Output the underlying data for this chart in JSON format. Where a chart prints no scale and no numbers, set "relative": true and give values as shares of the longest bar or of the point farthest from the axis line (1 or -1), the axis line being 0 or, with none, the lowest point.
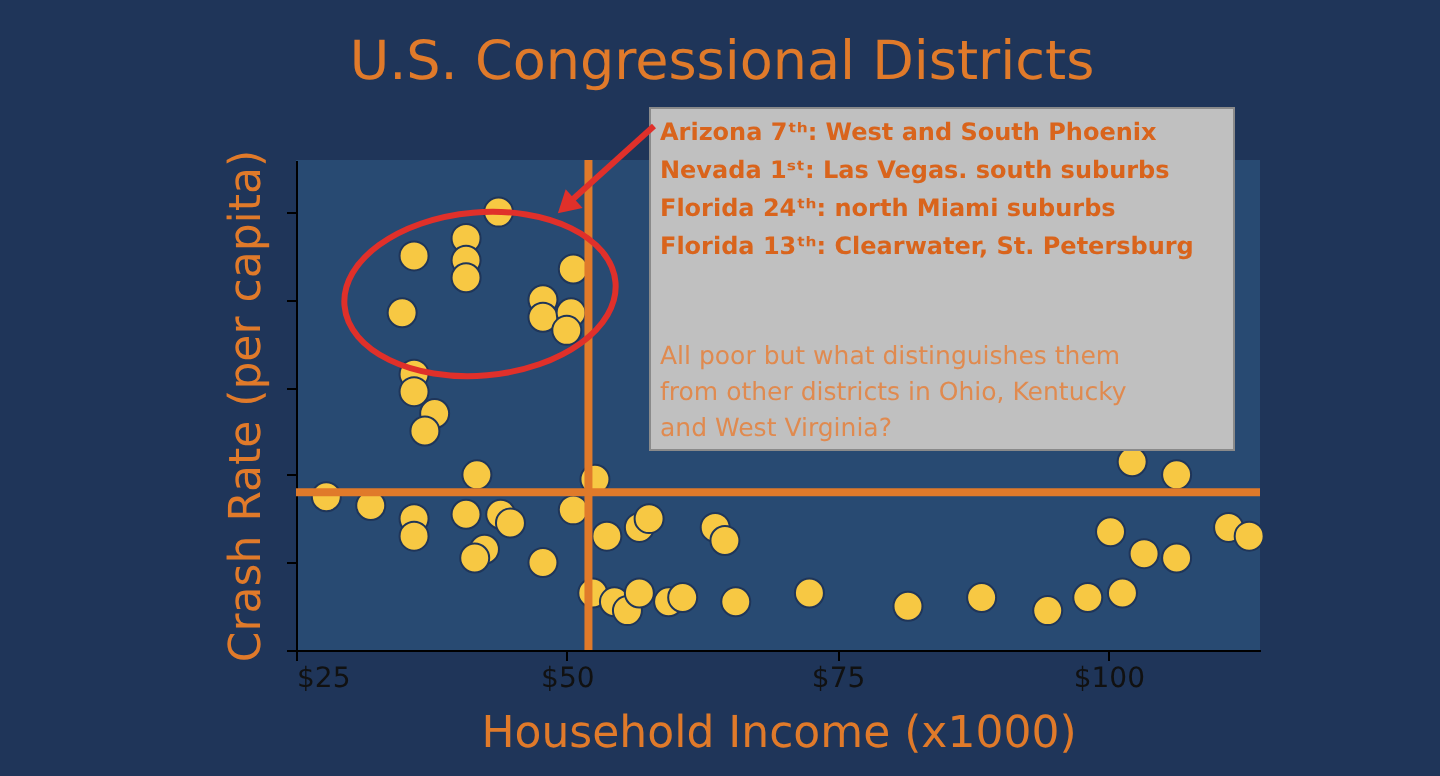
{
  "chart_data": {
    "type": "scatter",
    "title": "U.S. Congressional Districts",
    "xlabel": "Household Income (x1000)",
    "ylabel": "Crash Rate (per capita)",
    "relative": true,
    "x": [
      27.8,
      31.9,
      35.9,
      35.9,
      41.7,
      40.7,
      43.9,
      44.8,
      42.4,
      41.5,
      47.8,
      50.6,
      52.6,
      35.9,
      35.9,
      37.8,
      36.9,
      34.8,
      35.9,
      40.7,
      40.7,
      40.7,
      43.7,
      50.6,
      47.8,
      47.8,
      50.4,
      50.0,
      53.7,
      56.7,
      57.6,
      63.7,
      64.6,
      52.4,
      54.4,
      55.6,
      56.7,
      59.4,
      60.7,
      65.6,
      72.4,
      81.5,
      88.3,
      94.4,
      98.1,
      101.3,
      100.2,
      103.3,
      106.3,
      102.2,
      106.3,
      111.1,
      113.0
    ],
    "series": [
      {
        "color": "#f7c843",
        "values": [
          0.35,
          0.33,
          0.3,
          0.26,
          0.4,
          0.31,
          0.31,
          0.29,
          0.23,
          0.21,
          0.2,
          0.32,
          0.39,
          0.63,
          0.59,
          0.54,
          0.5,
          0.77,
          0.9,
          0.94,
          0.89,
          0.85,
          1.0,
          0.87,
          0.8,
          0.76,
          0.77,
          0.73,
          0.26,
          0.28,
          0.3,
          0.28,
          0.25,
          0.13,
          0.11,
          0.09,
          0.13,
          0.11,
          0.12,
          0.11,
          0.13,
          0.1,
          0.12,
          0.09,
          0.12,
          0.13,
          0.27,
          0.22,
          0.21,
          0.43,
          0.4,
          0.28,
          0.26
        ]
      }
    ],
    "xlim": [
      25,
      114
    ],
    "xticks": [
      {
        "value": 25,
        "label": "$25"
      },
      {
        "value": 50,
        "label": "$50"
      },
      {
        "value": 75,
        "label": "$75"
      },
      {
        "value": 100,
        "label": "$100"
      }
    ],
    "ref_lines": [
      {
        "axis": "x",
        "value": 52,
        "color": "#e07a2a"
      },
      {
        "axis": "y",
        "value": 0.36,
        "color": "#e07a2a"
      }
    ],
    "annotations": [
      "Arizona 7ᵗʰ: West and South Phoenix",
      "Nevada 1ˢᵗ: Las Vegas. south suburbs",
      "Florida 24ᵗʰ: north Miami suburbs",
      "Florida 13ᵗʰ: Clearwater, St. Petersburg",
      "All poor but what distinguishes them\nfrom other districts in Ohio, Kentucky\nand West Virginia?"
    ],
    "marker": "circle"
  }
}
